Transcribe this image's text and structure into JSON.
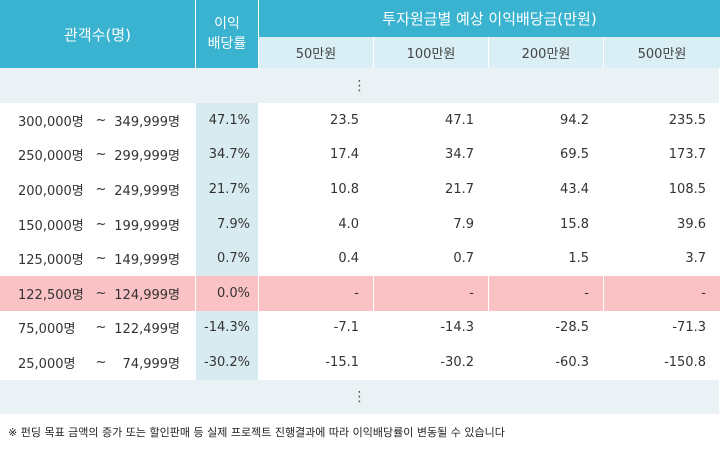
{
  "header": {
    "audience": "관객수(명)",
    "rate_line1": "이익",
    "rate_line2": "배당률",
    "group": "투자원금별 예상 이익배당금(만원)",
    "amounts": [
      "50만원",
      "100만원",
      "200만원",
      "500만원"
    ]
  },
  "ellipsis": "⋮",
  "rows": [
    {
      "from": "300,000명",
      "tilde": "~",
      "to": "349,999명",
      "rate": "47.1%",
      "v": [
        "23.5",
        "47.1",
        "94.2",
        "235.5"
      ]
    },
    {
      "from": "250,000명",
      "tilde": "~",
      "to": "299,999명",
      "rate": "34.7%",
      "v": [
        "17.4",
        "34.7",
        "69.5",
        "173.7"
      ]
    },
    {
      "from": "200,000명",
      "tilde": "~",
      "to": "249,999명",
      "rate": "21.7%",
      "v": [
        "10.8",
        "21.7",
        "43.4",
        "108.5"
      ]
    },
    {
      "from": "150,000명",
      "tilde": "~",
      "to": "199,999명",
      "rate": "7.9%",
      "v": [
        "4.0",
        "7.9",
        "15.8",
        "39.6"
      ]
    },
    {
      "from": "125,000명",
      "tilde": "~",
      "to": "149,999명",
      "rate": "0.7%",
      "v": [
        "0.4",
        "0.7",
        "1.5",
        "3.7"
      ]
    },
    {
      "from": "122,500명",
      "tilde": "~",
      "to": "124,999명",
      "rate": "0.0%",
      "v": [
        "-",
        "-",
        "-",
        "-"
      ]
    },
    {
      "from": "75,000명",
      "tilde": "~",
      "to": "122,499명",
      "rate": "-14.3%",
      "v": [
        "-7.1",
        "-14.3",
        "-28.5",
        "-71.3"
      ]
    },
    {
      "from": "25,000명",
      "tilde": "~",
      "to": "74,999명",
      "rate": "-30.2%",
      "v": [
        "-15.1",
        "-30.2",
        "-60.3",
        "-150.8"
      ]
    }
  ],
  "note": "※ 펀딩 목표 금액의 증가 또는 할인판매 등 실제 프로젝트 진행결과에 따라 이익배당률이 변동될 수 있습니다",
  "colors": {
    "header": "#39b3cf",
    "subheader": "#d9eff5",
    "highlight": "#fbc2c6",
    "band": "#eaf2f5"
  }
}
